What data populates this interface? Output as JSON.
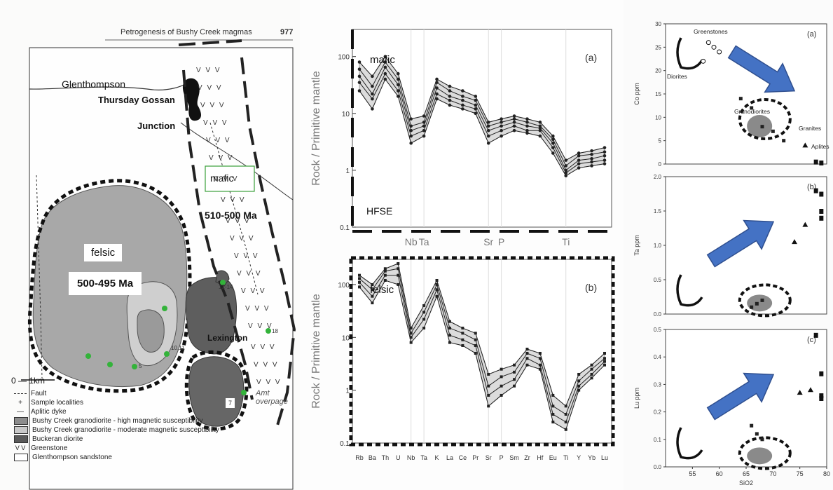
{
  "map": {
    "header": "Petrogenesis of Bushy Creek magmas",
    "page_number": "977",
    "glenthompson": "Glenthompson",
    "thursday_gossan": "Thursday Gossan",
    "junction": "Junction",
    "mafic_label": "mafic",
    "mafic_age": "510-500 Ma",
    "felsic_label": "felsic",
    "felsic_age": "500-495 Ma",
    "lexington": "Lexington",
    "scale": "0 — 1km",
    "annotation": "Amt overpage",
    "sample_numbers": [
      "12-14",
      "18",
      "10,11",
      "5",
      "7"
    ],
    "legend": [
      {
        "symbol": "fault",
        "label": "Fault"
      },
      {
        "symbol": "plus",
        "label": "Sample localities"
      },
      {
        "symbol": "dash",
        "label": "Aplitic dyke"
      },
      {
        "symbol": "dark",
        "label": "Bushy Creek granodiorite - high magnetic susceptibility",
        "color": "#8c8c8c"
      },
      {
        "symbol": "light",
        "label": "Bushy Creek granodiorite - moderate magnetic susceptibility",
        "color": "#c8c8c8"
      },
      {
        "symbol": "darkest",
        "label": "Buckeran diorite",
        "color": "#5a5a5a"
      },
      {
        "symbol": "v",
        "label": "Greenstone"
      },
      {
        "symbol": "box",
        "label": "Glenthompson sandstone"
      }
    ]
  },
  "chart_data": [
    {
      "type": "line",
      "panel": "(a)",
      "label": "mafic",
      "hfse_label": "HFSE",
      "ylabel": "Rock / Primitive mantle",
      "yscale": "log",
      "ylim": [
        0.1,
        300
      ],
      "yticks": [
        "100",
        "10",
        "1",
        "0.1"
      ],
      "categories": [
        "Rb",
        "Ba",
        "Th",
        "U",
        "Nb",
        "Ta",
        "K",
        "La",
        "Ce",
        "Pr",
        "Sr",
        "P",
        "Sm",
        "Zr",
        "Hf",
        "Eu",
        "Ti",
        "Y",
        "Yb",
        "Lu"
      ],
      "hfse_annotation": [
        "Nb",
        "Ta",
        "Sr",
        "P",
        "Ti"
      ],
      "series": [
        {
          "values": [
            80,
            45,
            100,
            50,
            8,
            9,
            40,
            30,
            25,
            20,
            7,
            8,
            9,
            8,
            7,
            4,
            1.5,
            2,
            2.2,
            2.5
          ]
        },
        {
          "values": [
            60,
            30,
            80,
            40,
            6,
            7,
            35,
            25,
            20,
            17,
            6,
            7,
            8,
            7,
            6,
            3.5,
            1.2,
            1.8,
            1.9,
            2.1
          ]
        },
        {
          "values": [
            45,
            22,
            65,
            32,
            5,
            6,
            28,
            20,
            17,
            14,
            5,
            6,
            7,
            6,
            5.5,
            3,
            1,
            1.5,
            1.6,
            1.8
          ]
        },
        {
          "values": [
            35,
            18,
            50,
            25,
            4,
            5,
            22,
            17,
            14,
            12,
            4,
            5,
            6,
            5,
            5,
            2.5,
            0.9,
            1.3,
            1.4,
            1.5
          ]
        },
        {
          "values": [
            25,
            12,
            40,
            20,
            3,
            4,
            18,
            14,
            12,
            10,
            3,
            4,
            5,
            4.5,
            4,
            2,
            0.8,
            1.1,
            1.2,
            1.3
          ]
        }
      ]
    },
    {
      "type": "line",
      "panel": "(b)",
      "label": "felsic",
      "ylabel": "Rock / Primitive mantle",
      "yscale": "log",
      "ylim": [
        0.1,
        300
      ],
      "yticks": [
        "100",
        "10",
        "1",
        "0.1"
      ],
      "categories": [
        "Rb",
        "Ba",
        "Th",
        "U",
        "Nb",
        "Ta",
        "K",
        "La",
        "Ce",
        "Pr",
        "Sr",
        "P",
        "Sm",
        "Zr",
        "Hf",
        "Eu",
        "Ti",
        "Y",
        "Yb",
        "Lu"
      ],
      "series": [
        {
          "values": [
            150,
            100,
            200,
            250,
            15,
            40,
            120,
            20,
            15,
            12,
            2,
            2.5,
            3,
            6,
            5,
            0.8,
            0.5,
            2,
            3,
            5
          ]
        },
        {
          "values": [
            130,
            80,
            180,
            200,
            12,
            30,
            100,
            15,
            12,
            9,
            1.2,
            1.8,
            2.2,
            5,
            4,
            0.5,
            0.35,
            1.5,
            2.5,
            4
          ]
        },
        {
          "values": [
            110,
            60,
            150,
            150,
            10,
            22,
            80,
            11,
            9,
            7,
            0.8,
            1.2,
            1.6,
            4,
            3,
            0.35,
            0.25,
            1.2,
            2,
            3.5
          ]
        },
        {
          "values": [
            90,
            45,
            120,
            100,
            8,
            15,
            60,
            8,
            7,
            5,
            0.5,
            0.8,
            1.2,
            3,
            2.5,
            0.25,
            0.18,
            1,
            1.7,
            3
          ]
        }
      ]
    },
    {
      "type": "scatter",
      "panel": "(a)",
      "ylabel": "Co ppm",
      "ylim": [
        0,
        30
      ],
      "xlim": [
        50,
        80
      ],
      "yticks": [
        "30",
        "25",
        "20",
        "15",
        "10",
        "5",
        "0"
      ],
      "groups": {
        "greenstones": "Greenstones",
        "diorites": "Diorites",
        "granodiorites": "Granodiorites",
        "granites": "Granites",
        "aplites": "Aplites"
      },
      "series": [
        {
          "name": "Greenstones",
          "points": [
            [
              58,
              26
            ],
            [
              59,
              25
            ],
            [
              60,
              24
            ],
            [
              57,
              22
            ]
          ]
        },
        {
          "name": "Granodiorites",
          "points": [
            [
              64,
              14
            ],
            [
              66,
              12
            ],
            [
              68,
              8
            ],
            [
              70,
              7
            ],
            [
              72,
              5
            ]
          ]
        },
        {
          "name": "Granites",
          "points": [
            [
              76,
              4
            ]
          ]
        },
        {
          "name": "Aplites",
          "points": [
            [
              78,
              0.5
            ],
            [
              79,
              0.3
            ]
          ]
        }
      ]
    },
    {
      "type": "scatter",
      "panel": "(b)",
      "ylabel": "Ta ppm",
      "ylim": [
        0,
        2
      ],
      "xlim": [
        50,
        80
      ],
      "yticks": [
        "2.0",
        "1.5",
        "1.0",
        "0.5",
        "0.0"
      ],
      "series": [
        {
          "name": "Granodiorites",
          "points": [
            [
              66,
              0.1
            ],
            [
              67,
              0.15
            ],
            [
              68,
              0.2
            ]
          ]
        },
        {
          "name": "Granites",
          "points": [
            [
              74,
              1.05
            ],
            [
              76,
              1.3
            ]
          ]
        },
        {
          "name": "Aplites",
          "points": [
            [
              78,
              1.8
            ],
            [
              79,
              1.75
            ],
            [
              79,
              1.5
            ],
            [
              79,
              1.4
            ]
          ]
        }
      ]
    },
    {
      "type": "scatter",
      "panel": "(c)",
      "ylabel": "Lu ppm",
      "xlabel": "SiO2",
      "ylim": [
        0,
        0.5
      ],
      "xlim": [
        50,
        80
      ],
      "yticks": [
        "0.5",
        "0.4",
        "0.3",
        "0.2",
        "0.1",
        "0.0"
      ],
      "xticks": [
        "55",
        "60",
        "65",
        "70",
        "75",
        "80"
      ],
      "series": [
        {
          "name": "Granodiorites",
          "points": [
            [
              66,
              0.15
            ],
            [
              67,
              0.12
            ],
            [
              68,
              0.1
            ]
          ]
        },
        {
          "name": "Granites",
          "points": [
            [
              75,
              0.27
            ],
            [
              77,
              0.28
            ]
          ]
        },
        {
          "name": "Aplites",
          "points": [
            [
              78,
              0.48
            ],
            [
              79,
              0.34
            ],
            [
              79,
              0.26
            ],
            [
              79,
              0.25
            ]
          ]
        }
      ]
    }
  ]
}
